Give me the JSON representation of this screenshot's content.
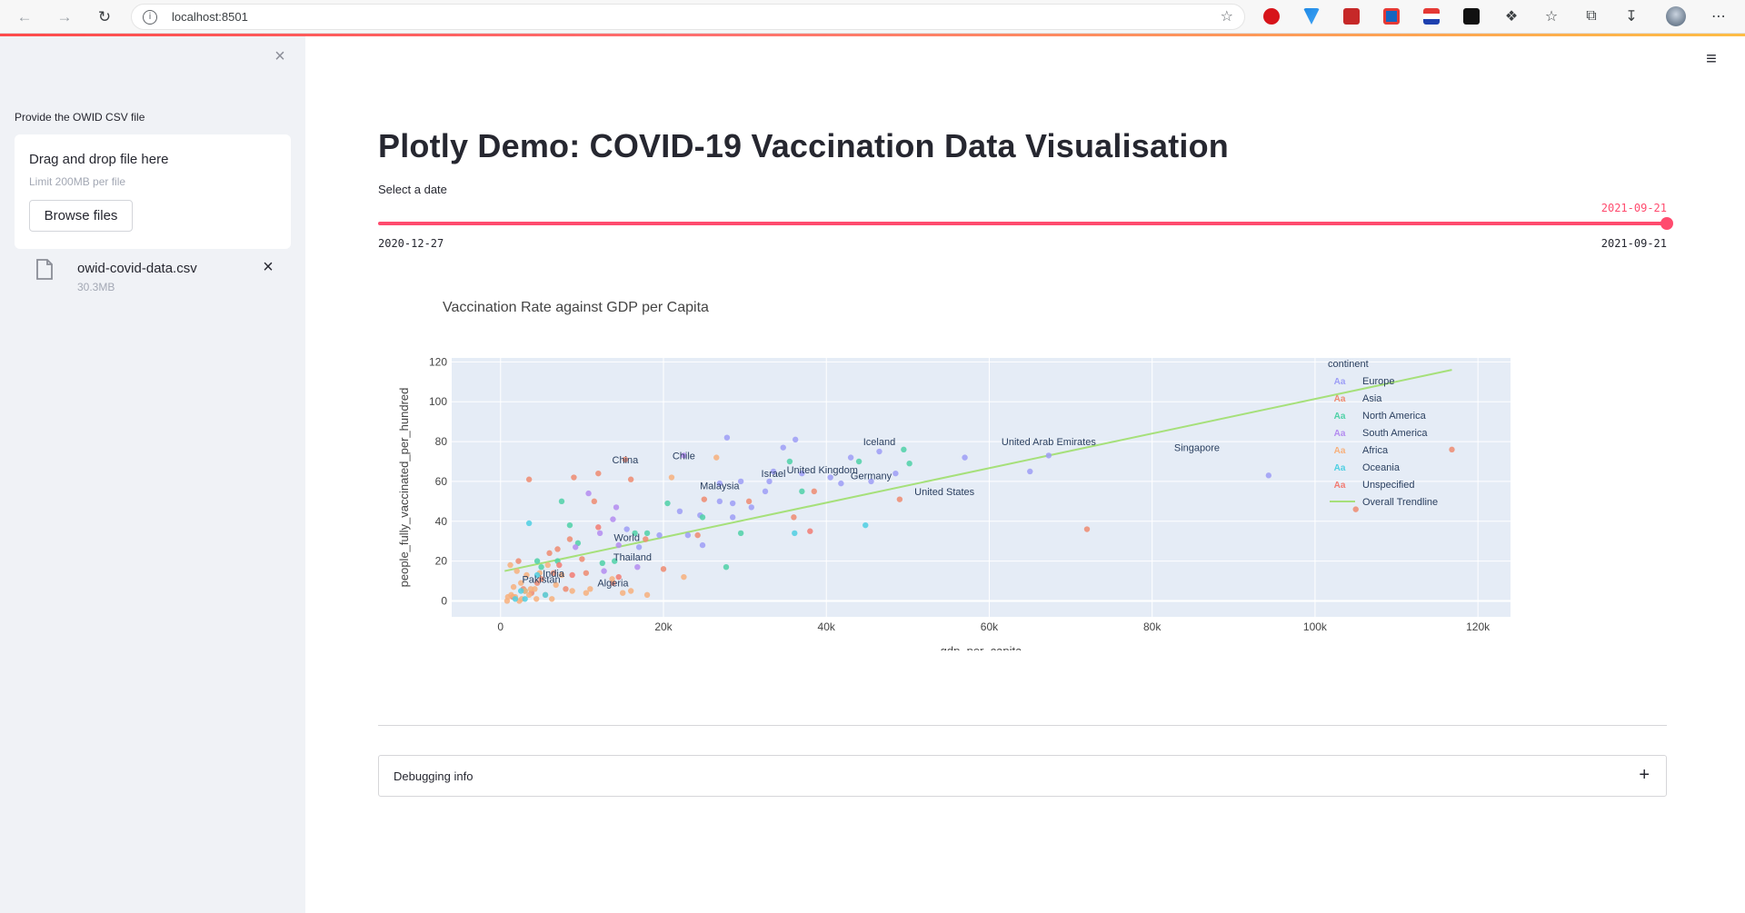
{
  "browser": {
    "url": "localhost:8501",
    "info_icon": "info-icon",
    "info_glyph": "i"
  },
  "sidebar": {
    "close_glyph": "×",
    "upload_label": "Provide the OWID CSV file",
    "dropzone_title": "Drag and drop file here",
    "dropzone_limit": "Limit 200MB per file",
    "browse_label": "Browse files",
    "file": {
      "name": "owid-covid-data.csv",
      "size": "30.3MB"
    },
    "remove_glyph": "×"
  },
  "main": {
    "menu_glyph": "≡",
    "title": "Plotly Demo: COVID-19 Vaccination Data Visualisation",
    "slider": {
      "label": "Select a date",
      "value": "2021-09-21",
      "min": "2020-12-27",
      "max": "2021-09-21",
      "position": 1.0
    },
    "expander": {
      "label": "Debugging info",
      "glyph": "+"
    }
  },
  "colors": {
    "accent": "#ff4b6e",
    "Europe": "#9d9ef6",
    "Asia": "#ef8b70",
    "North America": "#4fd1a7",
    "South America": "#b48cf0",
    "Africa": "#f7b07c",
    "Oceania": "#4fcfe2",
    "Unspecified": "#f27b72",
    "trendline": "#a6e07a"
  },
  "chart_data": {
    "type": "scatter",
    "title": "Vaccination Rate against GDP per Capita",
    "xlabel": "gdp_per_capita",
    "ylabel": "people_fully_vaccinated_per_hundred",
    "xlim": [
      -6000,
      124000
    ],
    "ylim": [
      -8,
      122
    ],
    "x_ticks": [
      0,
      20000,
      40000,
      60000,
      80000,
      100000,
      120000
    ],
    "x_tick_labels": [
      "0",
      "20k",
      "40k",
      "60k",
      "80k",
      "100k",
      "120k"
    ],
    "y_ticks": [
      0,
      20,
      40,
      60,
      80,
      100,
      120
    ],
    "grid": true,
    "legend_title": "continent",
    "legend_placement": "right",
    "legend": [
      "Europe",
      "Asia",
      "North America",
      "South America",
      "Africa",
      "Oceania",
      "Unspecified",
      "Overall Trendline"
    ],
    "labels": [
      {
        "text": "Iceland",
        "x": 46500,
        "y": 80
      },
      {
        "text": "United Arab Emirates",
        "x": 67300,
        "y": 80
      },
      {
        "text": "Singapore",
        "x": 85500,
        "y": 77
      },
      {
        "text": "Chile",
        "x": 22500,
        "y": 73
      },
      {
        "text": "China",
        "x": 15300,
        "y": 71
      },
      {
        "text": "Israel",
        "x": 33500,
        "y": 64
      },
      {
        "text": "United Kingdom",
        "x": 39500,
        "y": 66
      },
      {
        "text": "Germany",
        "x": 45500,
        "y": 63
      },
      {
        "text": "Malaysia",
        "x": 26900,
        "y": 58
      },
      {
        "text": "United States",
        "x": 54500,
        "y": 55
      },
      {
        "text": "World",
        "x": 15500,
        "y": 32
      },
      {
        "text": "Thailand",
        "x": 16200,
        "y": 22
      },
      {
        "text": "India",
        "x": 6500,
        "y": 14
      },
      {
        "text": "Pakistan",
        "x": 5000,
        "y": 11
      },
      {
        "text": "Algeria",
        "x": 13800,
        "y": 9
      }
    ],
    "trendline": {
      "name": "Overall Trendline",
      "x": [
        500,
        116800
      ],
      "y": [
        15,
        116
      ]
    },
    "series": [
      {
        "name": "Europe",
        "points": [
          [
            27800,
            82
          ],
          [
            36200,
            81
          ],
          [
            34700,
            77
          ],
          [
            46500,
            75
          ],
          [
            43000,
            72
          ],
          [
            48500,
            64
          ],
          [
            40500,
            62
          ],
          [
            41800,
            59
          ],
          [
            45500,
            60
          ],
          [
            33500,
            65
          ],
          [
            37000,
            64
          ],
          [
            29500,
            60
          ],
          [
            26900,
            59
          ],
          [
            32500,
            55
          ],
          [
            24500,
            43
          ],
          [
            28500,
            49
          ],
          [
            30800,
            47
          ],
          [
            22000,
            45
          ],
          [
            57000,
            72
          ],
          [
            65000,
            65
          ],
          [
            67300,
            73
          ],
          [
            94300,
            63
          ],
          [
            33000,
            60
          ],
          [
            19500,
            33
          ],
          [
            17000,
            27
          ],
          [
            15500,
            36
          ],
          [
            24800,
            28
          ],
          [
            23000,
            33
          ],
          [
            28500,
            42
          ],
          [
            26900,
            50
          ]
        ]
      },
      {
        "name": "Asia",
        "points": [
          [
            15300,
            71
          ],
          [
            9000,
            62
          ],
          [
            3500,
            61
          ],
          [
            12000,
            64
          ],
          [
            11500,
            50
          ],
          [
            16000,
            61
          ],
          [
            17800,
            31
          ],
          [
            13800,
            9
          ],
          [
            8500,
            31
          ],
          [
            10500,
            14
          ],
          [
            6500,
            14
          ],
          [
            7000,
            26
          ],
          [
            8000,
            6
          ],
          [
            5000,
            11
          ],
          [
            3800,
            4
          ],
          [
            2200,
            20
          ],
          [
            72000,
            36
          ],
          [
            105000,
            46
          ],
          [
            49000,
            51
          ],
          [
            116800,
            76
          ],
          [
            36000,
            42
          ],
          [
            38500,
            55
          ],
          [
            25000,
            51
          ],
          [
            24200,
            33
          ],
          [
            20000,
            16
          ],
          [
            30500,
            50
          ],
          [
            10000,
            21
          ],
          [
            2800,
            6
          ],
          [
            4500,
            9
          ],
          [
            1500,
            2
          ],
          [
            6000,
            24
          ]
        ]
      },
      {
        "name": "North America",
        "points": [
          [
            49500,
            76
          ],
          [
            50200,
            69
          ],
          [
            44000,
            70
          ],
          [
            37000,
            55
          ],
          [
            35500,
            70
          ],
          [
            29500,
            34
          ],
          [
            27700,
            17
          ],
          [
            20500,
            49
          ],
          [
            24800,
            42
          ],
          [
            12500,
            19
          ],
          [
            14000,
            20
          ],
          [
            16500,
            34
          ],
          [
            8500,
            38
          ],
          [
            7500,
            50
          ],
          [
            7000,
            20
          ],
          [
            5000,
            17
          ],
          [
            4500,
            20
          ],
          [
            9500,
            29
          ],
          [
            18000,
            34
          ],
          [
            3000,
            5
          ]
        ]
      },
      {
        "name": "South America",
        "points": [
          [
            22500,
            73
          ],
          [
            14200,
            47
          ],
          [
            12200,
            34
          ],
          [
            10800,
            54
          ],
          [
            16800,
            17
          ],
          [
            14500,
            28
          ],
          [
            9200,
            27
          ],
          [
            12700,
            15
          ],
          [
            13800,
            41
          ]
        ]
      },
      {
        "name": "Africa",
        "points": [
          [
            13700,
            11
          ],
          [
            11000,
            6
          ],
          [
            10500,
            4
          ],
          [
            8800,
            5
          ],
          [
            1200,
            18
          ],
          [
            2000,
            15
          ],
          [
            2500,
            9
          ],
          [
            3000,
            5
          ],
          [
            1800,
            2
          ],
          [
            3500,
            3
          ],
          [
            800,
            0
          ],
          [
            1300,
            3
          ],
          [
            2600,
            1
          ],
          [
            4200,
            6
          ],
          [
            5500,
            3
          ],
          [
            6800,
            8
          ],
          [
            4800,
            14
          ],
          [
            16000,
            5
          ],
          [
            18000,
            3
          ],
          [
            15000,
            4
          ],
          [
            22500,
            12
          ],
          [
            26500,
            72
          ],
          [
            21000,
            62
          ],
          [
            7500,
            13
          ],
          [
            5800,
            18
          ],
          [
            3200,
            13
          ],
          [
            3700,
            6
          ],
          [
            4400,
            1
          ],
          [
            6300,
            1
          ],
          [
            1600,
            7
          ],
          [
            2300,
            0
          ],
          [
            900,
            2
          ]
        ]
      },
      {
        "name": "Oceania",
        "points": [
          [
            44800,
            38
          ],
          [
            36100,
            34
          ],
          [
            3500,
            39
          ],
          [
            3000,
            1
          ],
          [
            5500,
            3
          ],
          [
            4500,
            13
          ],
          [
            2500,
            5
          ],
          [
            1800,
            1
          ]
        ]
      },
      {
        "name": "Unspecified",
        "points": [
          [
            38000,
            35
          ],
          [
            12000,
            37
          ],
          [
            14500,
            12
          ],
          [
            7200,
            18
          ],
          [
            8800,
            13
          ]
        ]
      }
    ]
  }
}
